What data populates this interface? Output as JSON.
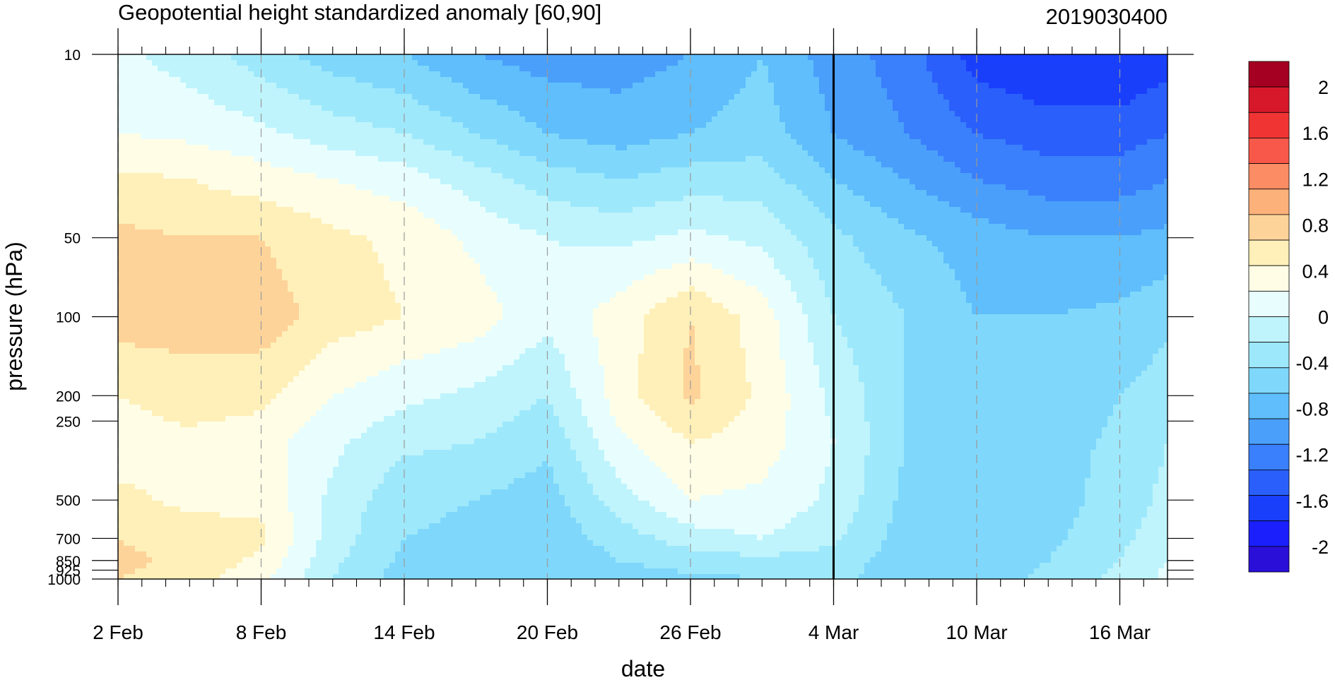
{
  "chart_data": {
    "type": "heatmap",
    "subtype": "filled-contour",
    "title": "Geopotential height standardized anomaly [60,90]",
    "date_label": "2019030400",
    "xlabel": "date",
    "ylabel": "pressure (hPa)",
    "x_tick_labels": [
      "2 Feb",
      "8 Feb",
      "14 Feb",
      "20 Feb",
      "26 Feb",
      "4 Mar",
      "10 Mar",
      "16 Mar"
    ],
    "y_tick_labels": [
      "10",
      "50",
      "100",
      "200",
      "250",
      "500",
      "700",
      "850",
      "925",
      "1000"
    ],
    "y_scale": "log (reversed)",
    "xlim": [
      "2 Feb",
      "18 Mar"
    ],
    "ylim": [
      1000,
      10
    ],
    "current_date_line": "4 Mar",
    "colorbar": {
      "labels": [
        "2",
        "1.6",
        "1.2",
        "0.8",
        "0.4",
        "0",
        "-0.4",
        "-0.8",
        "-1.2",
        "-1.6",
        "-2"
      ],
      "colors": [
        "#a50021",
        "#d7182a",
        "#f03434",
        "#f8584a",
        "#fc8c64",
        "#fdb17a",
        "#fdd39a",
        "#fef0b8",
        "#fffde6",
        "#e8fefe",
        "#bff4fc",
        "#9ee8fb",
        "#7fd8fb",
        "#5fbefb",
        "#4a9ffb",
        "#3a7ffb",
        "#2a5ffb",
        "#1a3ffb",
        "#1a1ffb",
        "#2a0fd8"
      ]
    },
    "approximate_grid": {
      "dates": [
        "2 Feb",
        "5 Feb",
        "8 Feb",
        "11 Feb",
        "14 Feb",
        "17 Feb",
        "20 Feb",
        "23 Feb",
        "26 Feb",
        "1 Mar",
        "4 Mar",
        "7 Mar",
        "10 Mar",
        "13 Mar",
        "16 Mar",
        "18 Mar"
      ],
      "levels_hPa": [
        10,
        20,
        30,
        50,
        100,
        200,
        300,
        500,
        700,
        850,
        1000
      ],
      "values": [
        [
          0.05,
          -0.1,
          -0.3,
          -0.5,
          -0.6,
          -0.8,
          -0.9,
          -0.9,
          -0.8,
          -0.6,
          -0.9,
          -1.1,
          -1.5,
          -1.6,
          -1.6,
          -1.5
        ],
        [
          0.2,
          0.15,
          0.05,
          -0.1,
          -0.2,
          -0.4,
          -0.6,
          -0.7,
          -0.6,
          -0.5,
          -0.8,
          -1.0,
          -1.2,
          -1.3,
          -1.3,
          -1.2
        ],
        [
          0.45,
          0.4,
          0.3,
          0.2,
          0.1,
          -0.1,
          -0.3,
          -0.4,
          -0.3,
          -0.3,
          -0.6,
          -0.8,
          -1.0,
          -1.1,
          -1.1,
          -1.0
        ],
        [
          0.65,
          0.6,
          0.6,
          0.45,
          0.35,
          0.15,
          0.0,
          -0.05,
          0.05,
          -0.05,
          -0.35,
          -0.55,
          -0.7,
          -0.8,
          -0.8,
          -0.75
        ],
        [
          0.7,
          0.7,
          0.72,
          0.5,
          0.4,
          0.3,
          0.05,
          0.3,
          0.6,
          0.3,
          -0.2,
          -0.4,
          -0.6,
          -0.6,
          -0.55,
          -0.45
        ],
        [
          0.4,
          0.5,
          0.45,
          0.2,
          0.05,
          -0.05,
          -0.2,
          0.3,
          0.65,
          0.35,
          -0.05,
          -0.4,
          -0.55,
          -0.55,
          -0.4,
          -0.3
        ],
        [
          0.3,
          0.35,
          0.3,
          0.05,
          -0.15,
          -0.2,
          -0.35,
          0.15,
          0.4,
          0.3,
          0.0,
          -0.4,
          -0.55,
          -0.5,
          -0.35,
          -0.2
        ],
        [
          0.45,
          0.35,
          0.35,
          -0.05,
          -0.35,
          -0.4,
          -0.5,
          -0.1,
          0.2,
          0.15,
          -0.05,
          -0.45,
          -0.6,
          -0.5,
          -0.3,
          -0.15
        ],
        [
          0.6,
          0.5,
          0.45,
          -0.1,
          -0.4,
          -0.45,
          -0.55,
          -0.3,
          -0.1,
          0.0,
          -0.15,
          -0.5,
          -0.6,
          -0.45,
          -0.25,
          -0.1
        ],
        [
          0.65,
          0.55,
          0.35,
          -0.15,
          -0.45,
          -0.45,
          -0.6,
          -0.4,
          -0.3,
          -0.25,
          -0.3,
          -0.5,
          -0.55,
          -0.4,
          -0.2,
          0.0
        ],
        [
          0.6,
          0.5,
          0.25,
          -0.2,
          -0.5,
          -0.5,
          -0.55,
          -0.5,
          -0.45,
          -0.4,
          -0.35,
          -0.5,
          -0.5,
          -0.35,
          -0.15,
          0.05
        ]
      ]
    }
  }
}
